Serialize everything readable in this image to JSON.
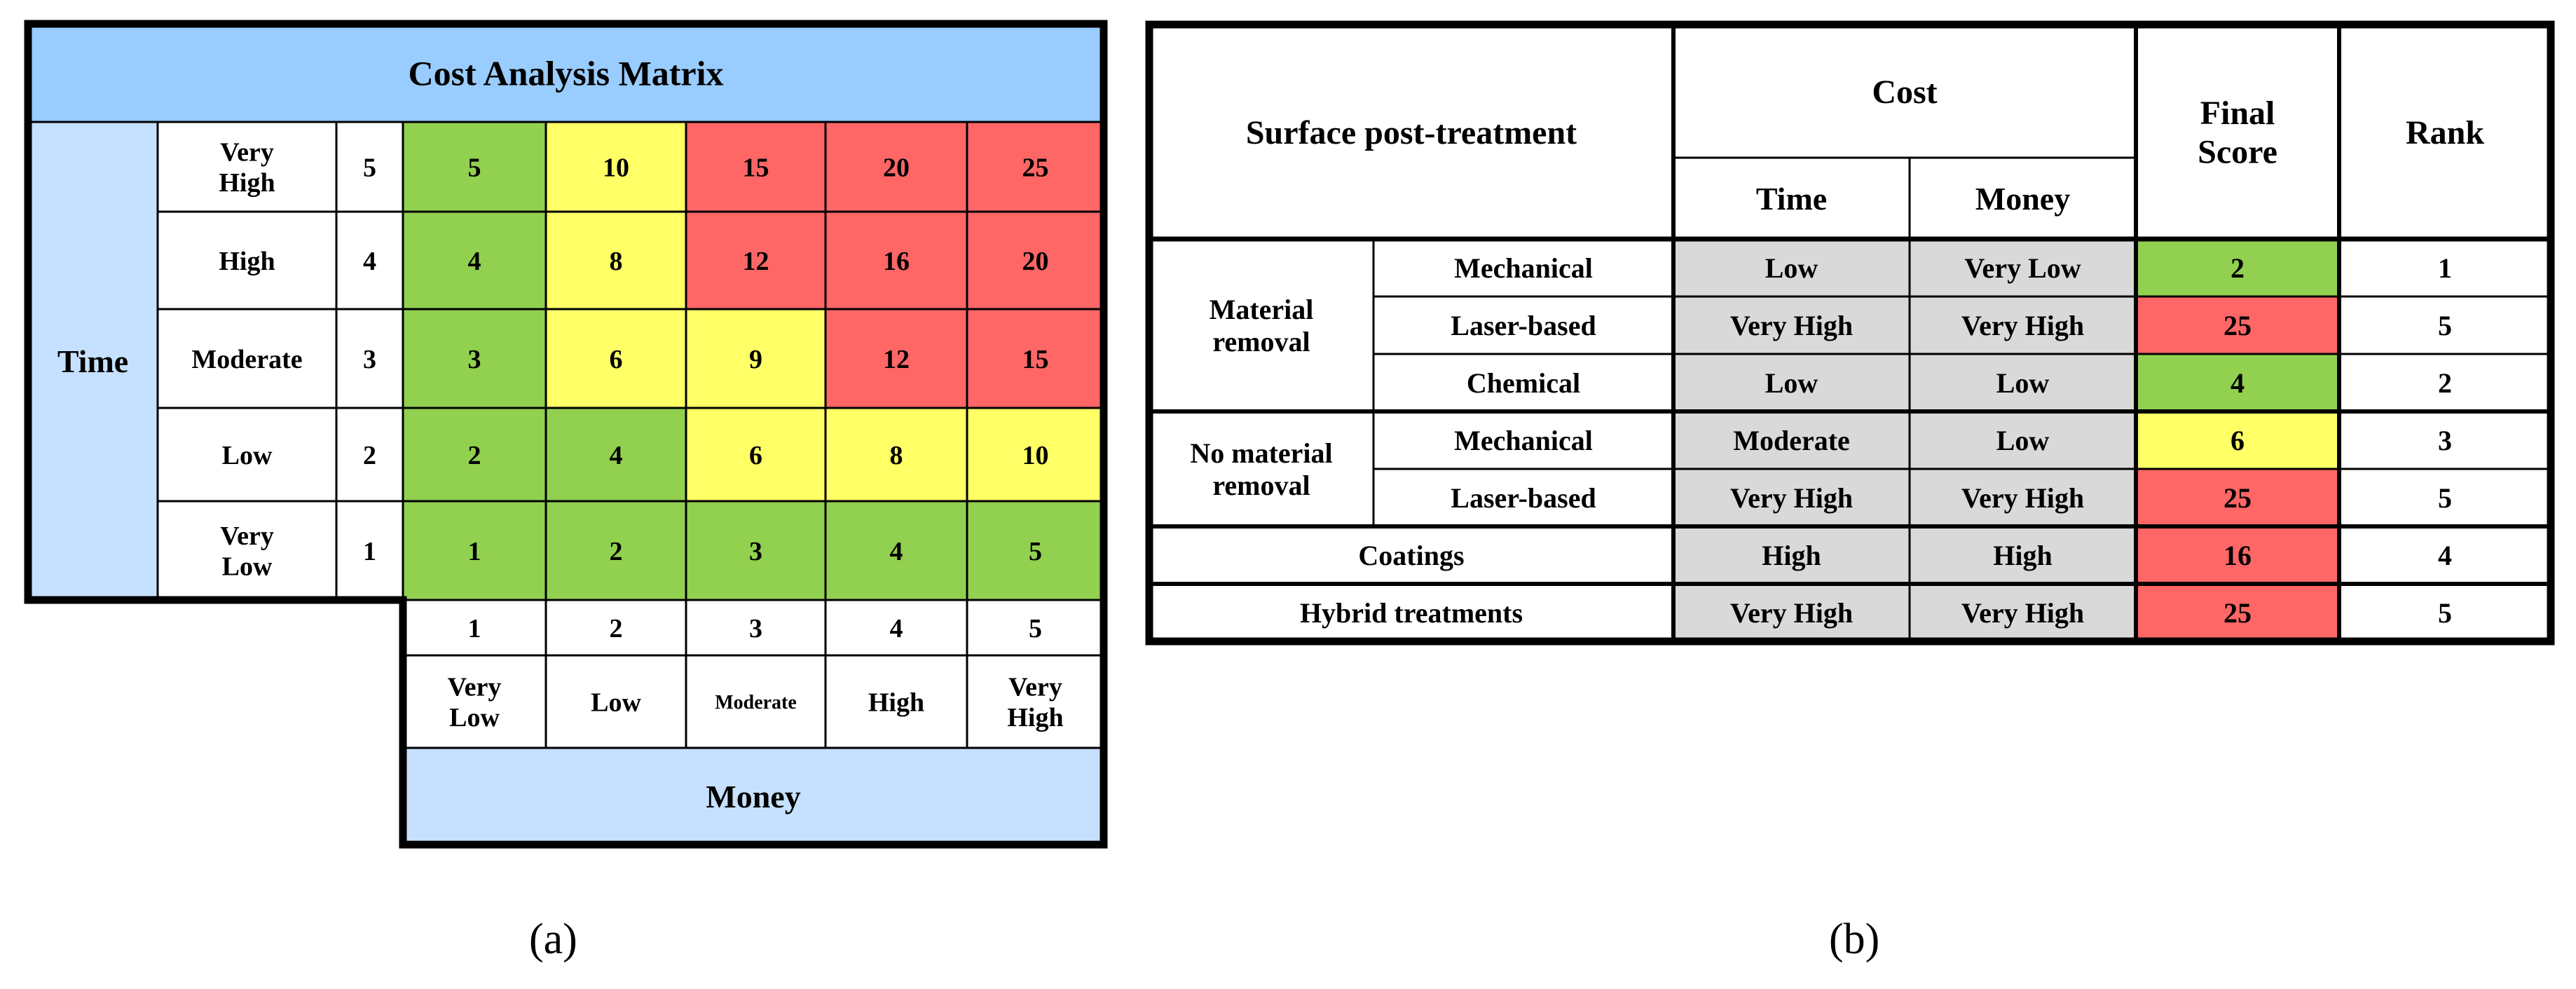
{
  "panel_a": {
    "label": "(a)",
    "title": "Cost Analysis Matrix",
    "row_axis_label": "Time",
    "col_axis_label": "Money",
    "row_levels": [
      {
        "name": [
          "Very",
          "High"
        ],
        "num": "5"
      },
      {
        "name": [
          "High"
        ],
        "num": "4"
      },
      {
        "name": [
          "Moderate"
        ],
        "num": "3"
      },
      {
        "name": [
          "Low"
        ],
        "num": "2"
      },
      {
        "name": [
          "Very",
          "Low"
        ],
        "num": "1"
      }
    ],
    "col_levels": [
      {
        "num": "1",
        "name": [
          "Very",
          "Low"
        ]
      },
      {
        "num": "2",
        "name": [
          "Low"
        ]
      },
      {
        "num": "3",
        "name": [
          "Moderate"
        ]
      },
      {
        "num": "4",
        "name": [
          "High"
        ]
      },
      {
        "num": "5",
        "name": [
          "Very",
          "High"
        ]
      }
    ],
    "values": [
      [
        "5",
        "10",
        "15",
        "20",
        "25"
      ],
      [
        "4",
        "8",
        "12",
        "16",
        "20"
      ],
      [
        "3",
        "6",
        "9",
        "12",
        "15"
      ],
      [
        "2",
        "4",
        "6",
        "8",
        "10"
      ],
      [
        "1",
        "2",
        "3",
        "4",
        "5"
      ]
    ],
    "cell_colors": [
      [
        "green",
        "yellow",
        "red",
        "red",
        "red"
      ],
      [
        "green",
        "yellow",
        "red",
        "red",
        "red"
      ],
      [
        "green",
        "yellow",
        "yellow",
        "red",
        "red"
      ],
      [
        "green",
        "green",
        "yellow",
        "yellow",
        "yellow"
      ],
      [
        "green",
        "green",
        "green",
        "green",
        "green"
      ]
    ]
  },
  "panel_b": {
    "label": "(b)",
    "header": {
      "treatment": "Surface post-treatment",
      "cost": "Cost",
      "time": "Time",
      "money": "Money",
      "final_score": [
        "Final",
        "Score"
      ],
      "rank": "Rank"
    },
    "groups": [
      {
        "name": [
          "Material",
          "removal"
        ]
      },
      {
        "name": [
          "No material",
          "removal"
        ]
      }
    ],
    "rows": [
      {
        "method": "Mechanical",
        "time": "Low",
        "money": "Very Low",
        "score": "2",
        "score_color": "green",
        "rank": "1"
      },
      {
        "method": "Laser-based",
        "time": "Very High",
        "money": "Very High",
        "score": "25",
        "score_color": "red",
        "rank": "5"
      },
      {
        "method": "Chemical",
        "time": "Low",
        "money": "Low",
        "score": "4",
        "score_color": "green",
        "rank": "2"
      },
      {
        "method": "Mechanical",
        "time": "Moderate",
        "money": "Low",
        "score": "6",
        "score_color": "yellow",
        "rank": "3"
      },
      {
        "method": "Laser-based",
        "time": "Very High",
        "money": "Very High",
        "score": "25",
        "score_color": "red",
        "rank": "5"
      },
      {
        "method": "Coatings",
        "time": "High",
        "money": "High",
        "score": "16",
        "score_color": "red",
        "rank": "4"
      },
      {
        "method": "Hybrid treatments",
        "time": "Very High",
        "money": "Very High",
        "score": "25",
        "score_color": "red",
        "rank": "5"
      }
    ]
  },
  "colors": {
    "green": "#92D050",
    "yellow": "#FFFF66",
    "red": "#FF6666",
    "title_blue": "#99CCFF",
    "axis_blue": "#C6E0FF",
    "grey": "#D9D9D9",
    "border": "#000000"
  }
}
